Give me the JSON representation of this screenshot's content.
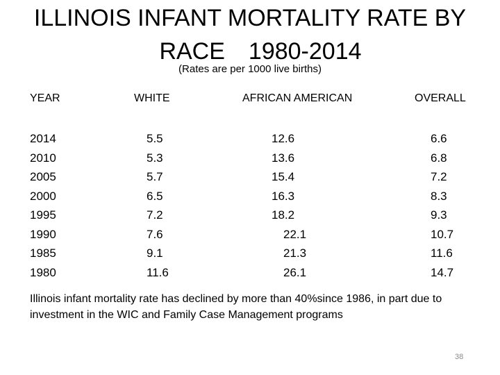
{
  "title": {
    "line1": "ILLINOIS INFANT MORTALITY RATE BY",
    "line2a": "RACE",
    "line2b": "1980-2014"
  },
  "subtitle": "(Rates are per 1000 live births)",
  "table": {
    "headers": [
      "YEAR",
      "WHITE",
      "AFRICAN AMERICAN",
      "OVERALL"
    ],
    "rows": [
      [
        "2014",
        "5.5",
        "12.6",
        "6.6"
      ],
      [
        "2010",
        "5.3",
        "13.6",
        "6.8"
      ],
      [
        "2005",
        "5.7",
        "15.4",
        "7.2"
      ],
      [
        "2000",
        "6.5",
        "16.3",
        "8.3"
      ],
      [
        "1995",
        "7.2",
        "18.2",
        "9.3"
      ],
      [
        "1990",
        "7.6",
        "22.1",
        "10.7"
      ],
      [
        "1985",
        "9.1",
        "21.3",
        "11.6"
      ],
      [
        "1980",
        "11.6",
        "26.1",
        "14.7"
      ]
    ]
  },
  "note": "Illinois infant mortality rate has declined by more than 40%since 1986, in part due to investment in the WIC and Family Case Management programs",
  "page_number": "38"
}
